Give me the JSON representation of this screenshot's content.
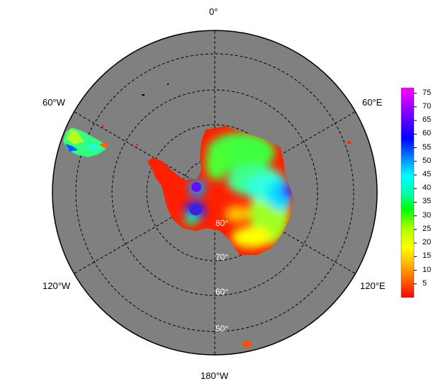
{
  "map": {
    "projection": "south-polar-stereographic",
    "background_color": "#808080",
    "outline_color": "#000000",
    "longitude_labels": [
      "0°",
      "60°E",
      "120°E",
      "180°W",
      "120°W",
      "60°W"
    ],
    "latitude_labels": [
      "80°",
      "70°",
      "60°",
      "50°"
    ]
  },
  "colorbar": {
    "ticks": [
      "75",
      "70",
      "65",
      "60",
      "55",
      "50",
      "45",
      "40",
      "35",
      "30",
      "25",
      "20",
      "15",
      "10",
      "5"
    ],
    "min": 0,
    "max": 77,
    "colors": [
      "#ff0000",
      "#ff6000",
      "#ffc000",
      "#ffff00",
      "#b0ff00",
      "#00ff00",
      "#00ffb0",
      "#00ffff",
      "#0080ff",
      "#0000ff",
      "#8000ff",
      "#ff00ff"
    ]
  }
}
